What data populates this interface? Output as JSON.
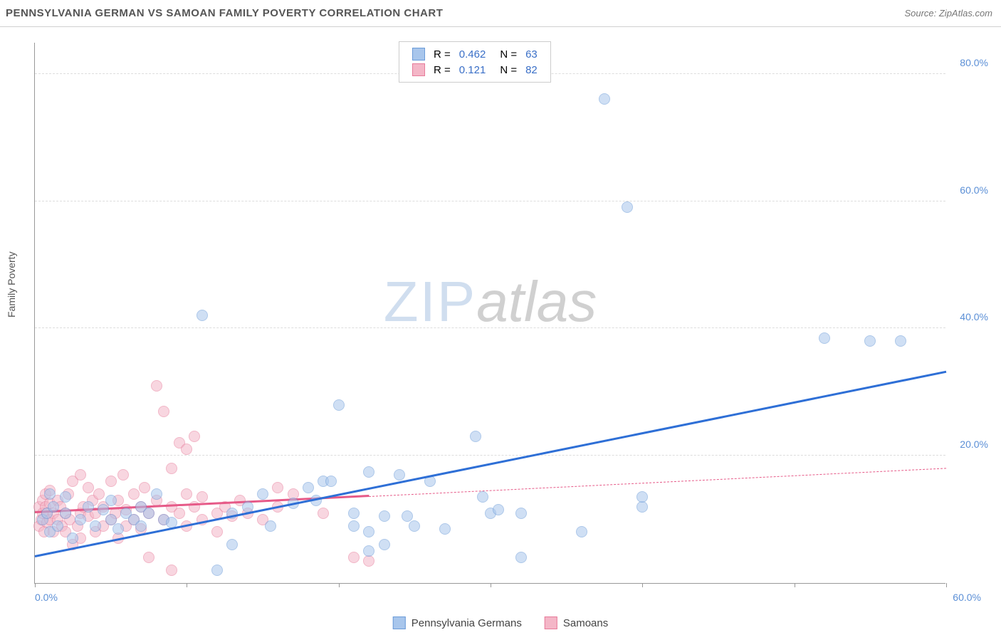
{
  "header": {
    "title": "PENNSYLVANIA GERMAN VS SAMOAN FAMILY POVERTY CORRELATION CHART",
    "source": "Source: ZipAtlas.com"
  },
  "watermark": {
    "part1": "ZIP",
    "part2": "atlas"
  },
  "chart": {
    "type": "scatter",
    "background_color": "#ffffff",
    "grid_color": "#dddddd",
    "axis_color": "#999999",
    "y_axis_title": "Family Poverty",
    "y_axis_title_color": "#555555",
    "xlim": [
      0,
      60
    ],
    "ylim": [
      0,
      85
    ],
    "y_ticks": [
      20,
      40,
      60,
      80
    ],
    "y_tick_labels": [
      "20.0%",
      "40.0%",
      "60.0%",
      "80.0%"
    ],
    "x_tick_positions": [
      0,
      10,
      20,
      30,
      40,
      50,
      60
    ],
    "x_label_min": "0.0%",
    "x_label_max": "60.0%",
    "tick_label_color": "#5b8fd6",
    "tick_label_fontsize": 14,
    "marker_size": 16,
    "marker_opacity": 0.55,
    "series": [
      {
        "name": "Pennsylvania Germans",
        "fill_color": "#a8c6ec",
        "stroke_color": "#6b9bd8",
        "trend_color": "#2e6fd6",
        "trend_width": 3,
        "R": "0.462",
        "N": "63",
        "trend": {
          "x1": 0,
          "y1": 4,
          "x2": 60,
          "y2": 33,
          "solid_until_x": 60
        },
        "points": [
          [
            0.5,
            10
          ],
          [
            0.8,
            11
          ],
          [
            1,
            14
          ],
          [
            1,
            8
          ],
          [
            1.2,
            12
          ],
          [
            1.5,
            9
          ],
          [
            2,
            11
          ],
          [
            2,
            13.5
          ],
          [
            2.5,
            7
          ],
          [
            3,
            10
          ],
          [
            3.5,
            12
          ],
          [
            4,
            9
          ],
          [
            4.5,
            11.5
          ],
          [
            5,
            10
          ],
          [
            5,
            13
          ],
          [
            5.5,
            8.5
          ],
          [
            6,
            11
          ],
          [
            6.5,
            10
          ],
          [
            7,
            9
          ],
          [
            7,
            12
          ],
          [
            7.5,
            11
          ],
          [
            8,
            14
          ],
          [
            8.5,
            10
          ],
          [
            9,
            9.5
          ],
          [
            11,
            42
          ],
          [
            12,
            2
          ],
          [
            13,
            11
          ],
          [
            13,
            6
          ],
          [
            14,
            12
          ],
          [
            15,
            14
          ],
          [
            15.5,
            9
          ],
          [
            17,
            12.5
          ],
          [
            18,
            15
          ],
          [
            18.5,
            13
          ],
          [
            19,
            16
          ],
          [
            19.5,
            16
          ],
          [
            20,
            28
          ],
          [
            21,
            11
          ],
          [
            21,
            9
          ],
          [
            22,
            8
          ],
          [
            22,
            17.5
          ],
          [
            22,
            5
          ],
          [
            23,
            10.5
          ],
          [
            23,
            6
          ],
          [
            24,
            17
          ],
          [
            24.5,
            10.5
          ],
          [
            25,
            9
          ],
          [
            26,
            16
          ],
          [
            27,
            8.5
          ],
          [
            29,
            23
          ],
          [
            29.5,
            13.5
          ],
          [
            30,
            11
          ],
          [
            30.5,
            11.5
          ],
          [
            32,
            4
          ],
          [
            32,
            11
          ],
          [
            36,
            8
          ],
          [
            37.5,
            76
          ],
          [
            39,
            59
          ],
          [
            40,
            12
          ],
          [
            40,
            13.5
          ],
          [
            52,
            38.5
          ],
          [
            55,
            38
          ],
          [
            57,
            38
          ]
        ]
      },
      {
        "name": "Samoans",
        "fill_color": "#f4b6c7",
        "stroke_color": "#e77b9a",
        "trend_color": "#e65a88",
        "trend_width": 3,
        "R": "0.121",
        "N": "82",
        "trend": {
          "x1": 0,
          "y1": 11,
          "x2": 60,
          "y2": 18,
          "solid_until_x": 22
        },
        "points": [
          [
            0.3,
            9
          ],
          [
            0.3,
            12
          ],
          [
            0.4,
            10
          ],
          [
            0.5,
            11
          ],
          [
            0.5,
            13
          ],
          [
            0.6,
            8
          ],
          [
            0.7,
            12
          ],
          [
            0.7,
            14
          ],
          [
            0.8,
            9.5
          ],
          [
            0.8,
            11
          ],
          [
            1,
            10
          ],
          [
            1,
            12.5
          ],
          [
            1,
            14.5
          ],
          [
            1.2,
            11
          ],
          [
            1.2,
            8
          ],
          [
            1.5,
            10
          ],
          [
            1.5,
            13
          ],
          [
            1.7,
            12
          ],
          [
            1.8,
            9
          ],
          [
            2,
            8
          ],
          [
            2,
            11
          ],
          [
            2.2,
            14
          ],
          [
            2.3,
            10
          ],
          [
            2.5,
            6
          ],
          [
            2.5,
            16
          ],
          [
            2.8,
            9
          ],
          [
            3,
            17
          ],
          [
            3,
            11
          ],
          [
            3,
            7
          ],
          [
            3.2,
            12
          ],
          [
            3.5,
            15
          ],
          [
            3.5,
            10.5
          ],
          [
            3.8,
            13
          ],
          [
            4,
            8
          ],
          [
            4,
            11
          ],
          [
            4.2,
            14
          ],
          [
            4.5,
            9
          ],
          [
            4.5,
            12
          ],
          [
            5,
            10
          ],
          [
            5,
            16
          ],
          [
            5.3,
            11
          ],
          [
            5.5,
            7
          ],
          [
            5.5,
            13
          ],
          [
            5.8,
            17
          ],
          [
            6,
            9
          ],
          [
            6,
            11.5
          ],
          [
            6.5,
            14
          ],
          [
            6.5,
            10
          ],
          [
            7,
            12
          ],
          [
            7,
            8.5
          ],
          [
            7.2,
            15
          ],
          [
            7.5,
            4
          ],
          [
            7.5,
            11
          ],
          [
            8,
            31
          ],
          [
            8,
            13
          ],
          [
            8.5,
            10
          ],
          [
            8.5,
            27
          ],
          [
            9,
            12
          ],
          [
            9,
            18
          ],
          [
            9,
            2
          ],
          [
            9.5,
            11
          ],
          [
            9.5,
            22
          ],
          [
            10,
            9
          ],
          [
            10,
            14
          ],
          [
            10,
            21
          ],
          [
            10.5,
            23
          ],
          [
            10.5,
            12
          ],
          [
            11,
            10
          ],
          [
            11,
            13.5
          ],
          [
            12,
            11
          ],
          [
            12,
            8
          ],
          [
            12.5,
            12
          ],
          [
            13,
            10.5
          ],
          [
            13.5,
            13
          ],
          [
            14,
            11
          ],
          [
            15,
            10
          ],
          [
            16,
            12
          ],
          [
            16,
            15
          ],
          [
            17,
            14
          ],
          [
            19,
            11
          ],
          [
            21,
            4
          ],
          [
            22,
            3.5
          ]
        ]
      }
    ],
    "legend_top": {
      "border_color": "#cccccc",
      "rows": [
        {
          "swatch_fill": "#a8c6ec",
          "swatch_stroke": "#6b9bd8",
          "R_label": "R =",
          "R": "0.462",
          "N_label": "N =",
          "N": "63"
        },
        {
          "swatch_fill": "#f4b6c7",
          "swatch_stroke": "#e77b9a",
          "R_label": "R =",
          "R": "0.121",
          "N_label": "N =",
          "N": "82"
        }
      ],
      "value_color": "#3a6fc7"
    },
    "legend_bottom": [
      {
        "swatch_fill": "#a8c6ec",
        "swatch_stroke": "#6b9bd8",
        "label": "Pennsylvania Germans"
      },
      {
        "swatch_fill": "#f4b6c7",
        "swatch_stroke": "#e77b9a",
        "label": "Samoans"
      }
    ]
  }
}
